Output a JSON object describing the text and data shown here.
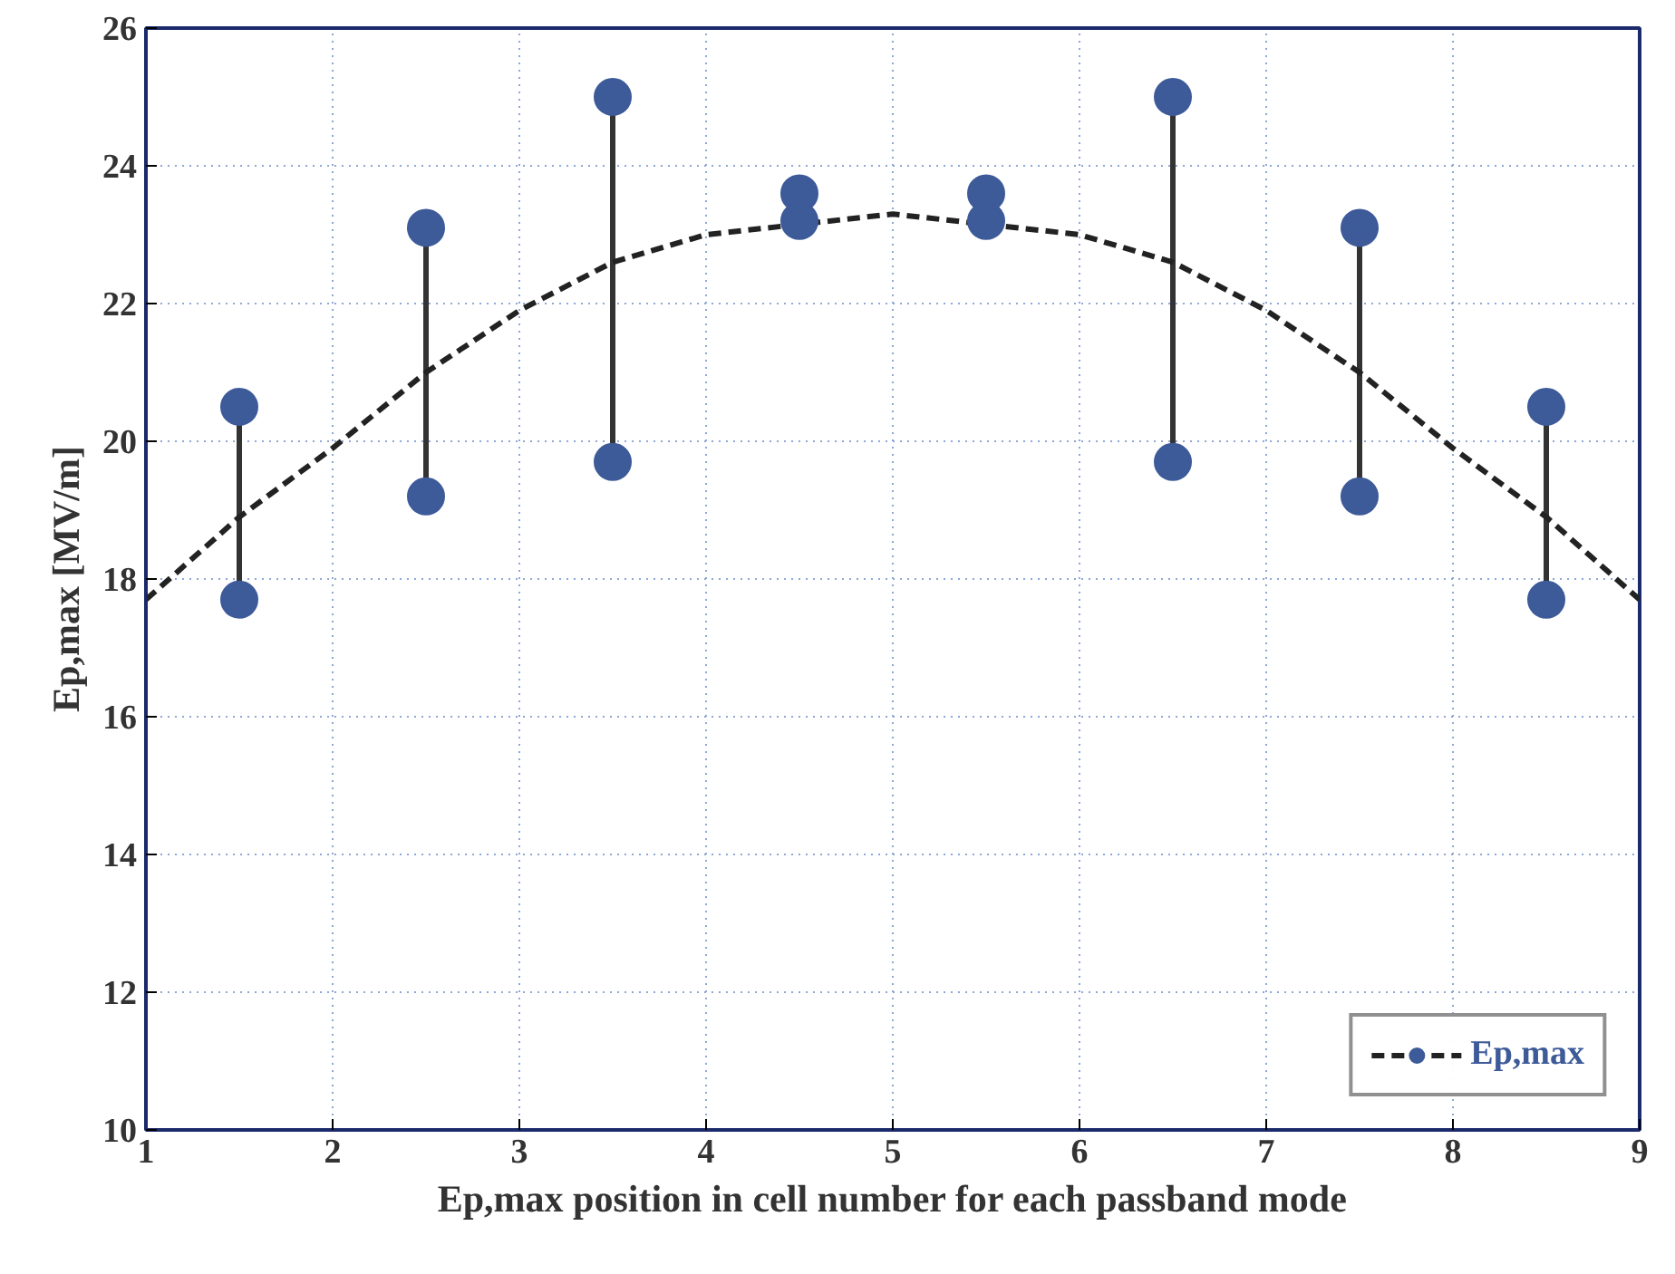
{
  "chart_data": {
    "type": "scatter",
    "xlabel": "Ep,max position in cell number for each passband mode",
    "ylabel": "Ep,max [MV/m]",
    "xlim": [
      1,
      9
    ],
    "ylim": [
      10,
      26
    ],
    "xticks": [
      1,
      2,
      3,
      4,
      5,
      6,
      7,
      8,
      9
    ],
    "yticks": [
      10,
      12,
      14,
      16,
      18,
      20,
      22,
      24,
      26
    ],
    "grid": true,
    "legend": "bottom right",
    "marker": "circle",
    "series": [
      {
        "type": "line",
        "color": "#333333",
        "line_style": "solid",
        "marker": "none",
        "x": [
          1.5,
          1.5
        ],
        "values": [
          17.7,
          20.5
        ]
      },
      {
        "type": "line",
        "color": "#333333",
        "line_style": "solid",
        "marker": "none",
        "x": [
          2.5,
          2.5
        ],
        "values": [
          19.2,
          23.1
        ]
      },
      {
        "type": "line",
        "color": "#333333",
        "line_style": "solid",
        "marker": "none",
        "x": [
          3.5,
          3.5
        ],
        "values": [
          19.7,
          25.0
        ]
      },
      {
        "type": "line",
        "color": "#333333",
        "line_style": "solid",
        "marker": "none",
        "x": [
          6.5,
          6.5
        ],
        "values": [
          19.7,
          25.0
        ]
      },
      {
        "type": "line",
        "color": "#333333",
        "line_style": "solid",
        "marker": "none",
        "x": [
          7.5,
          7.5
        ],
        "values": [
          19.2,
          23.1
        ]
      },
      {
        "type": "line",
        "color": "#333333",
        "line_style": "solid",
        "marker": "none",
        "x": [
          8.5,
          8.5
        ],
        "values": [
          17.7,
          20.5
        ]
      },
      {
        "type": "line",
        "color": "#222222",
        "line_style": "dashed",
        "marker": "none",
        "x": [
          1,
          1.5,
          2,
          2.5,
          3,
          3.5,
          4,
          5,
          6,
          6.5,
          7,
          7.5,
          8,
          8.5,
          9
        ],
        "values": [
          17.7,
          18.9,
          19.9,
          21.0,
          21.9,
          22.6,
          23.0,
          23.3,
          23.0,
          22.6,
          21.9,
          21.0,
          19.9,
          18.9,
          17.7
        ]
      },
      {
        "name": "Ep,max",
        "color": "#3d5a99",
        "x": [
          1.5,
          1.5,
          2.5,
          2.5,
          3.5,
          3.5,
          4.5,
          4.5,
          5.5,
          5.5,
          6.5,
          6.5,
          7.5,
          7.5,
          8.5,
          8.5
        ],
        "values": [
          20.5,
          17.7,
          23.1,
          19.2,
          25.0,
          19.7,
          23.6,
          23.2,
          23.6,
          23.2,
          25.0,
          19.7,
          23.1,
          19.2,
          20.5,
          17.7
        ]
      }
    ]
  }
}
